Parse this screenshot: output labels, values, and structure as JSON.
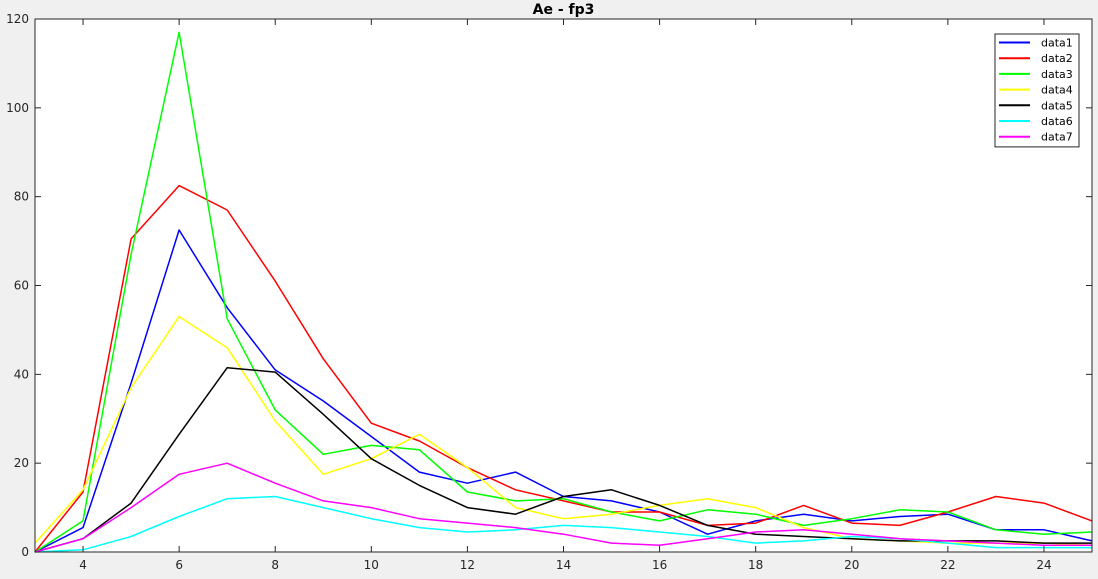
{
  "chart_data": {
    "type": "line",
    "title": "Ae - fp3",
    "xlabel": "",
    "ylabel": "",
    "xlim": [
      3,
      25
    ],
    "ylim": [
      0,
      120
    ],
    "xticks": [
      4,
      6,
      8,
      10,
      12,
      14,
      16,
      18,
      20,
      22,
      24
    ],
    "yticks": [
      0,
      20,
      40,
      60,
      80,
      100,
      120
    ],
    "grid": false,
    "legend_position": "top-right",
    "x": [
      3,
      4,
      5,
      6,
      7,
      8,
      9,
      10,
      11,
      12,
      13,
      14,
      15,
      16,
      17,
      18,
      19,
      20,
      21,
      22,
      23,
      24,
      25
    ],
    "series": [
      {
        "name": "data1",
        "color": "#0000ff",
        "values": [
          0,
          5.5,
          38,
          72.5,
          55,
          41,
          34,
          26,
          18,
          15.5,
          18,
          12.5,
          11.5,
          9,
          4,
          7,
          8.5,
          7,
          8,
          8.5,
          5,
          5,
          2.5
        ]
      },
      {
        "name": "data2",
        "color": "#ff0000",
        "values": [
          0,
          13.5,
          70.5,
          82.5,
          77,
          61,
          43.5,
          29,
          25,
          19,
          14,
          11.5,
          9,
          9,
          6,
          6.5,
          10.5,
          6.5,
          6,
          9,
          12.5,
          11,
          7
        ]
      },
      {
        "name": "data3",
        "color": "#00ff00",
        "values": [
          0,
          7,
          67,
          117,
          52.5,
          32,
          22,
          24,
          23,
          13.5,
          11.5,
          12,
          9,
          7,
          9.5,
          8.5,
          6,
          7.5,
          9.5,
          9,
          5,
          4,
          4.5
        ]
      },
      {
        "name": "data4",
        "color": "#ffff00",
        "values": [
          2,
          14,
          37,
          53,
          46,
          29.5,
          17.5,
          21,
          26.5,
          19,
          10,
          7.5,
          8.5,
          10.5,
          12,
          10,
          5.5,
          3,
          2.5,
          2,
          2,
          2,
          1.5
        ]
      },
      {
        "name": "data5",
        "color": "#000000",
        "values": [
          0,
          3,
          11,
          26.5,
          41.5,
          40.5,
          31,
          21,
          15,
          10,
          8.5,
          12.5,
          14,
          10.5,
          6,
          4,
          3.5,
          3,
          2.5,
          2.5,
          2.5,
          2,
          2
        ]
      },
      {
        "name": "data6",
        "color": "#00ffff",
        "values": [
          0,
          0.5,
          3.5,
          8,
          12,
          12.5,
          10,
          7.5,
          5.5,
          4.5,
          5,
          6,
          5.5,
          4.5,
          3.5,
          2,
          2.5,
          3.5,
          3,
          2,
          1,
          1,
          1
        ]
      },
      {
        "name": "data7",
        "color": "#ff00ff",
        "values": [
          0,
          3,
          10,
          17.5,
          20,
          15.5,
          11.5,
          10,
          7.5,
          6.5,
          5.5,
          4,
          2,
          1.5,
          3,
          4.5,
          5,
          4,
          3,
          2.5,
          2,
          1.5,
          1.5
        ]
      }
    ]
  }
}
